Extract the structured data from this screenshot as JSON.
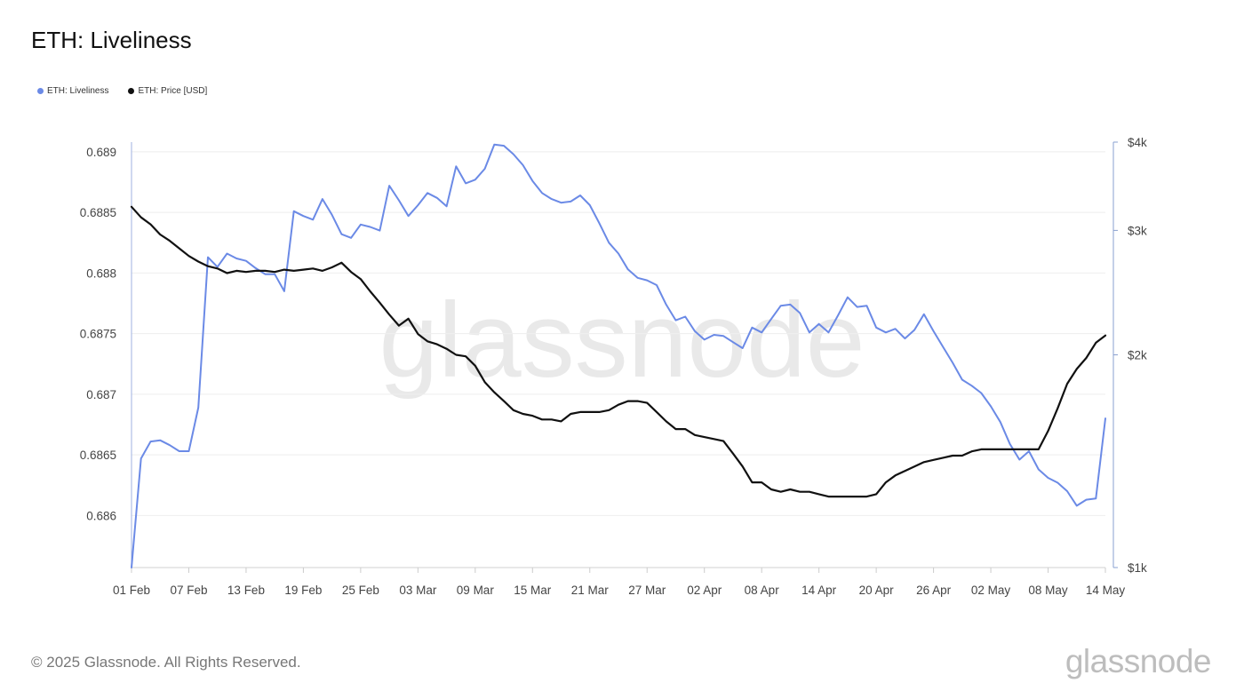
{
  "title": "ETH: Liveliness",
  "legend": [
    {
      "label": "ETH: Liveliness",
      "color": "#6b8ae6"
    },
    {
      "label": "ETH: Price [USD]",
      "color": "#111111"
    }
  ],
  "watermark": "glassnode",
  "footer": "© 2025 Glassnode. All Rights Reserved.",
  "logo": "glassnode",
  "chart_data": {
    "type": "line",
    "title": "ETH: Liveliness",
    "x_labels": [
      "01 Feb",
      "07 Feb",
      "13 Feb",
      "19 Feb",
      "25 Feb",
      "03 Mar",
      "09 Mar",
      "15 Mar",
      "21 Mar",
      "27 Mar",
      "02 Apr",
      "08 Apr",
      "14 Apr",
      "20 Apr",
      "26 Apr",
      "02 May",
      "08 May",
      "14 May"
    ],
    "x_range": [
      "2025-02-01",
      "2025-05-14"
    ],
    "y_left": {
      "ticks": [
        0.686,
        0.6865,
        0.687,
        0.6875,
        0.688,
        0.6885,
        0.689
      ],
      "tick_labels": [
        "0.686",
        "0.6865",
        "0.687",
        "0.6875",
        "0.688",
        "0.6885",
        "0.689"
      ],
      "range": [
        0.68557,
        0.68908
      ]
    },
    "y_right": {
      "scale": "log",
      "ticks": [
        1000,
        2000,
        3000,
        4000
      ],
      "tick_labels": [
        "$1k",
        "$2k",
        "$3k",
        "$4k"
      ],
      "range": [
        1000,
        4000
      ]
    },
    "grid": true,
    "legend_position": "top-left",
    "series": [
      {
        "name": "ETH: Liveliness",
        "axis": "left",
        "color": "#6b8ae6",
        "values": [
          0.68557,
          0.68647,
          0.68661,
          0.68662,
          0.68658,
          0.68653,
          0.68653,
          0.68689,
          0.68813,
          0.68805,
          0.68816,
          0.68812,
          0.6881,
          0.68804,
          0.68799,
          0.68799,
          0.68785,
          0.68851,
          0.68847,
          0.68844,
          0.68861,
          0.68848,
          0.68832,
          0.68829,
          0.6884,
          0.68838,
          0.68835,
          0.68872,
          0.6886,
          0.68847,
          0.68856,
          0.68866,
          0.68862,
          0.68855,
          0.68888,
          0.68874,
          0.68877,
          0.68886,
          0.68906,
          0.68905,
          0.68898,
          0.68889,
          0.68876,
          0.68866,
          0.68861,
          0.68858,
          0.68859,
          0.68864,
          0.68856,
          0.68841,
          0.68825,
          0.68816,
          0.68803,
          0.68796,
          0.68794,
          0.6879,
          0.68774,
          0.68761,
          0.68764,
          0.68752,
          0.68745,
          0.68749,
          0.68748,
          0.68743,
          0.68738,
          0.68755,
          0.68751,
          0.68762,
          0.68773,
          0.68774,
          0.68767,
          0.68751,
          0.68758,
          0.68751,
          0.68765,
          0.6878,
          0.68772,
          0.68773,
          0.68755,
          0.68751,
          0.68754,
          0.68746,
          0.68753,
          0.68766,
          0.68752,
          0.68739,
          0.68726,
          0.68712,
          0.68707,
          0.68701,
          0.6869,
          0.68677,
          0.68659,
          0.68646,
          0.68653,
          0.68638,
          0.68631,
          0.68627,
          0.6862,
          0.68608,
          0.68613,
          0.68614,
          0.6868
        ]
      },
      {
        "name": "ETH: Price [USD]",
        "axis": "right",
        "color": "#111111",
        "values": [
          3240,
          3130,
          3060,
          2960,
          2900,
          2830,
          2760,
          2710,
          2670,
          2650,
          2610,
          2630,
          2620,
          2630,
          2630,
          2620,
          2640,
          2630,
          2640,
          2650,
          2630,
          2660,
          2700,
          2620,
          2560,
          2460,
          2370,
          2280,
          2200,
          2250,
          2140,
          2090,
          2070,
          2040,
          2000,
          1990,
          1930,
          1830,
          1770,
          1720,
          1670,
          1650,
          1640,
          1620,
          1620,
          1610,
          1650,
          1660,
          1660,
          1660,
          1670,
          1700,
          1720,
          1720,
          1710,
          1660,
          1610,
          1570,
          1570,
          1540,
          1530,
          1520,
          1510,
          1450,
          1390,
          1320,
          1320,
          1290,
          1280,
          1290,
          1280,
          1280,
          1270,
          1260,
          1260,
          1260,
          1260,
          1260,
          1270,
          1320,
          1350,
          1370,
          1390,
          1410,
          1420,
          1430,
          1440,
          1440,
          1460,
          1470,
          1470,
          1470,
          1470,
          1470,
          1470,
          1470,
          1560,
          1680,
          1820,
          1910,
          1980,
          2080,
          2130
        ]
      }
    ]
  }
}
